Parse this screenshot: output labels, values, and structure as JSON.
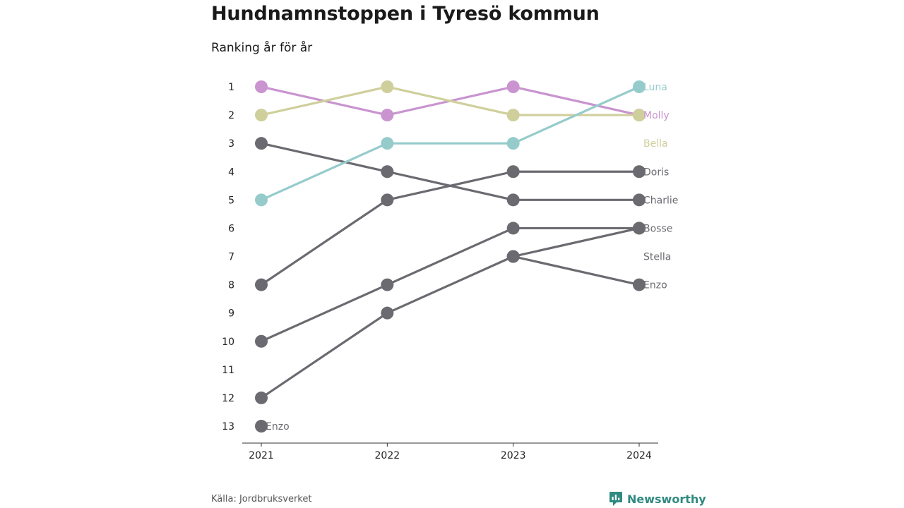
{
  "title": "Hundnamnstoppen i Tyresö kommun",
  "subtitle": "Ranking år för år",
  "source": "Källa: Jordbruksverket",
  "brand": {
    "name": "Newsworthy",
    "icon": "bar-chart-logo-icon",
    "color": "#2f8a80"
  },
  "chart_data": {
    "type": "line",
    "x": [
      "2021",
      "2022",
      "2023",
      "2024"
    ],
    "y_ticks": [
      1,
      2,
      3,
      4,
      5,
      6,
      7,
      8,
      9,
      10,
      11,
      12,
      13
    ],
    "ylim": [
      1,
      13
    ],
    "y_inverted": true,
    "grid": false,
    "colors": {
      "Luna": "#96cbcb",
      "Molly": "#c994cf",
      "Bella": "#cfcf9c",
      "other": "#6b6a70"
    },
    "series": [
      {
        "name": "Molly",
        "values": [
          1,
          2,
          1,
          2
        ]
      },
      {
        "name": "Bella",
        "values": [
          2,
          1,
          2,
          2
        ]
      },
      {
        "name": "Luna",
        "values": [
          5,
          3,
          3,
          1
        ]
      },
      {
        "name": "Charlie",
        "values": [
          3,
          4,
          5,
          5
        ]
      },
      {
        "name": "Doris",
        "values": [
          8,
          5,
          4,
          4
        ]
      },
      {
        "name": "Bosse",
        "values": [
          10,
          8,
          6,
          6
        ]
      },
      {
        "name": "Stella",
        "values": [
          12,
          9,
          7,
          6
        ]
      },
      {
        "name": "Enzo",
        "values": [
          13,
          null,
          7,
          8
        ]
      }
    ],
    "end_labels": [
      {
        "name": "Luna",
        "rank": 1
      },
      {
        "name": "Molly",
        "rank": 2
      },
      {
        "name": "Bella",
        "rank": 3
      },
      {
        "name": "Doris",
        "rank": 4
      },
      {
        "name": "Charlie",
        "rank": 5
      },
      {
        "name": "Bosse",
        "rank": 6
      },
      {
        "name": "Stella",
        "rank": 7
      },
      {
        "name": "Enzo",
        "rank": 8
      }
    ],
    "start_labels": [
      {
        "name": "Enzo",
        "rank": 13,
        "x": "2021"
      }
    ]
  }
}
